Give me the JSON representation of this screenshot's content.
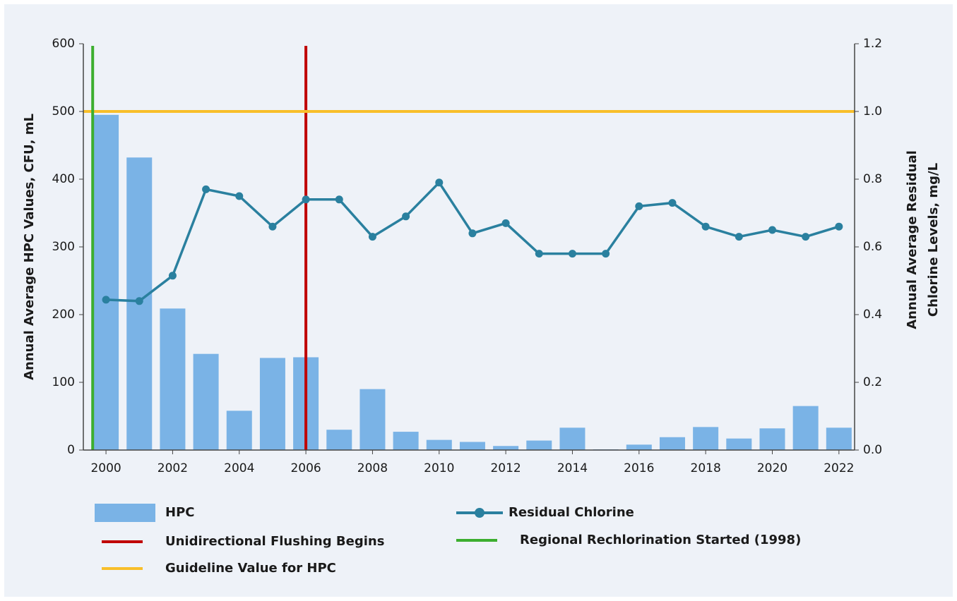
{
  "chart_data": {
    "type": "bar_line",
    "x": [
      2000,
      2001,
      2002,
      2003,
      2004,
      2005,
      2006,
      2007,
      2008,
      2009,
      2010,
      2011,
      2012,
      2013,
      2014,
      2015,
      2016,
      2017,
      2018,
      2019,
      2020,
      2021,
      2022
    ],
    "xlim": [
      1999.32,
      2022.47
    ],
    "xticks": [
      2000,
      2002,
      2004,
      2006,
      2008,
      2010,
      2012,
      2014,
      2016,
      2018,
      2020,
      2022
    ],
    "y_label": "Annual Average HPC Values, CFU, mL",
    "y2_label": "Annual Average Residual Chlorine Levels, mg/L",
    "ylim": [
      0,
      600
    ],
    "yticks": [
      0,
      100,
      200,
      300,
      400,
      500,
      600
    ],
    "y2lim": [
      0,
      1.2
    ],
    "y2ticks": [
      {
        "value": 0,
        "label": "0.0"
      },
      0.2,
      0.4,
      0.6,
      0.8,
      {
        "value": 1,
        "label": "1.0"
      },
      1.2
    ],
    "series": [
      {
        "name": "HPC",
        "type": "bar",
        "color": "#7ab3e6",
        "values": [
          495,
          432,
          209,
          142,
          58,
          136,
          137,
          30,
          90,
          27,
          15,
          12,
          6,
          14,
          33,
          1,
          8,
          19,
          34,
          17,
          32,
          65,
          33
        ]
      },
      {
        "name": "Residual Chlorine",
        "type": "line",
        "axis": "y2",
        "color": "#2a809f",
        "values": [
          0.444,
          0.44,
          0.515,
          0.77,
          0.75,
          0.66,
          0.74,
          0.74,
          0.63,
          0.69,
          0.79,
          0.64,
          0.67,
          0.58,
          0.58,
          0.58,
          0.72,
          0.73,
          0.66,
          0.63,
          0.65,
          0.63,
          0.66
        ]
      }
    ],
    "reference_lines": [
      {
        "name": "Unidirectional Flushing Begins",
        "axis": "x",
        "value": 2006,
        "color": "#c00000"
      },
      {
        "name": "Guideline Value for HPC",
        "axis": "y",
        "value": 500,
        "color": "#f8bf2a"
      },
      {
        "name": "Regional Rechlorination Started (1998)",
        "axis": "x",
        "value": 1999.6,
        "color": "#3cae2f"
      }
    ]
  }
}
